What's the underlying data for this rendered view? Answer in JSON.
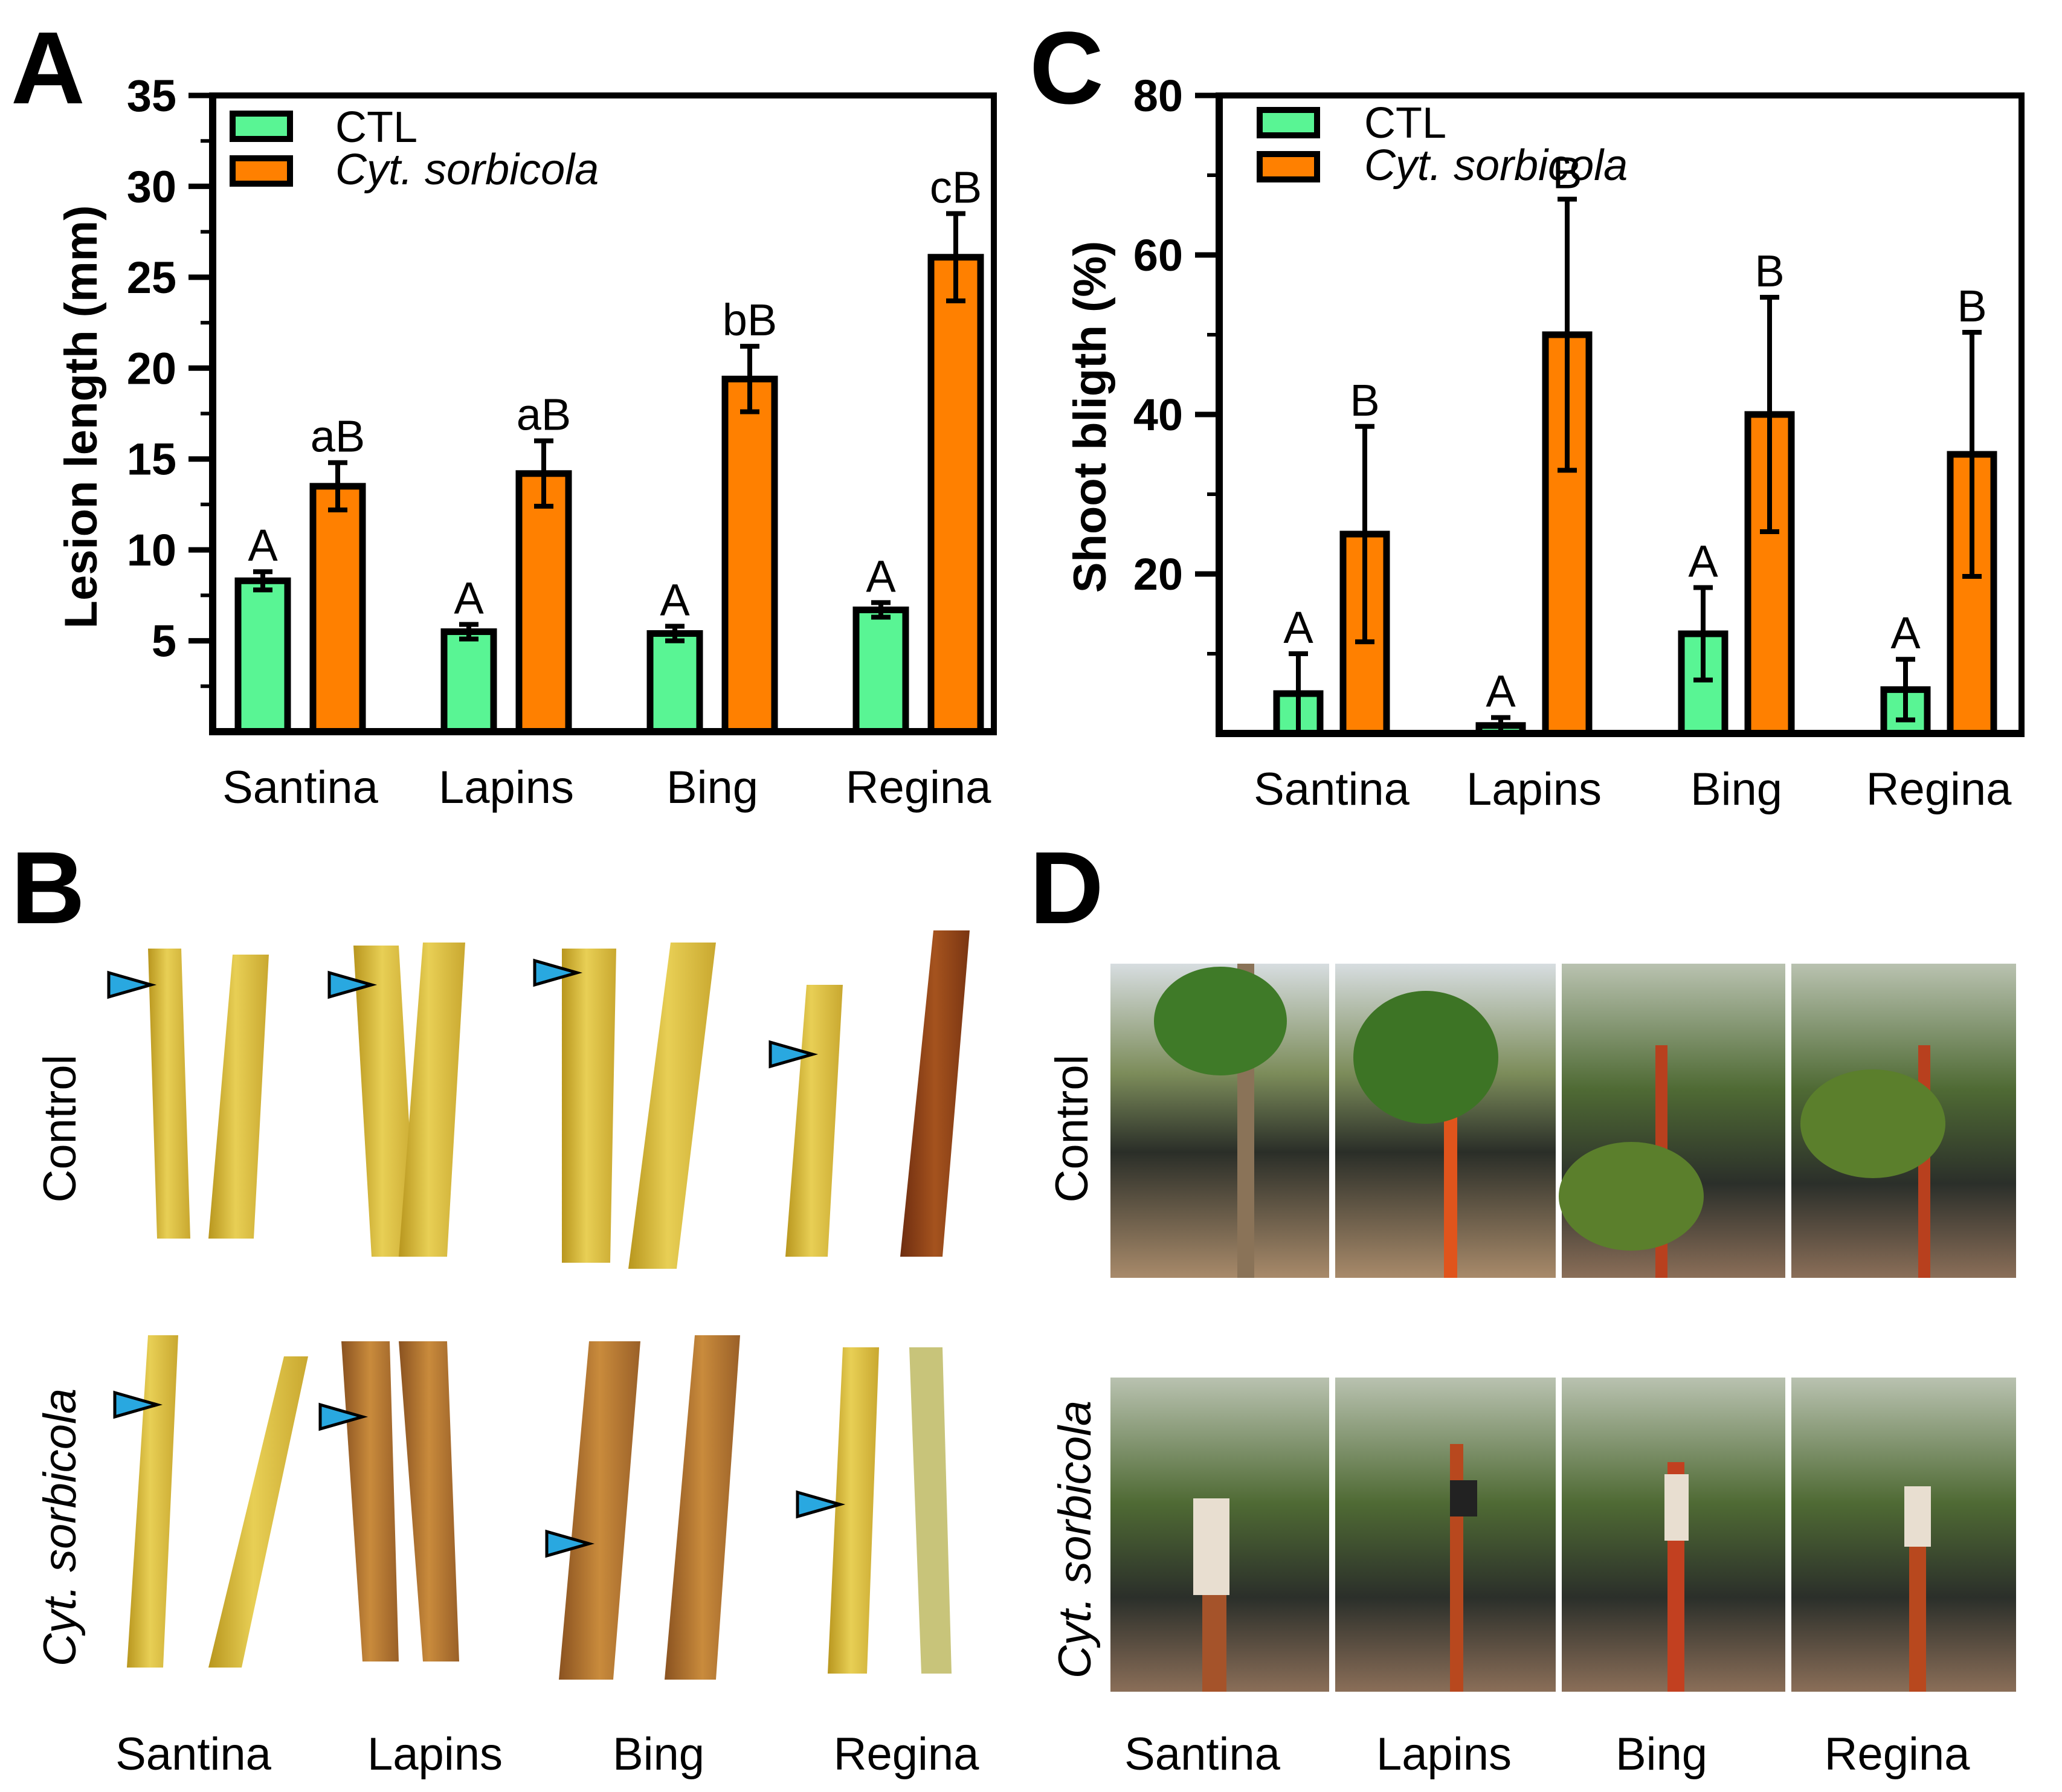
{
  "panel_labels": {
    "a": "A",
    "b": "B",
    "c": "C",
    "d": "D"
  },
  "colors": {
    "ctl": "#59f594",
    "treat": "#ff8000",
    "axis": "#000000",
    "arrow": "#29a8e0"
  },
  "legend": {
    "ctl": "CTL",
    "treat": "Cyt. sorbicola"
  },
  "chart_data": [
    {
      "id": "A",
      "type": "bar",
      "title": "",
      "xlabel": "",
      "ylabel": "Lesion length (mm)",
      "ylim": [
        0,
        35
      ],
      "yticks": [
        "5",
        "10",
        "15",
        "20",
        "25",
        "30",
        "35"
      ],
      "ytick_values": [
        5,
        10,
        15,
        20,
        25,
        30,
        35
      ],
      "categories": [
        "Santina",
        "Lapins",
        "Bing",
        "Regina"
      ],
      "series": [
        {
          "name": "CTL",
          "values": [
            8.3,
            5.5,
            5.4,
            6.7
          ],
          "errors": [
            0.5,
            0.4,
            0.4,
            0.4
          ],
          "labels": [
            "A",
            "A",
            "A",
            "A"
          ]
        },
        {
          "name": "Cyt. sorbicola",
          "values": [
            13.5,
            14.2,
            19.4,
            26.1
          ],
          "errors": [
            1.3,
            1.8,
            1.8,
            2.4
          ],
          "labels": [
            "aB",
            "aB",
            "bB",
            "cB"
          ]
        }
      ]
    },
    {
      "id": "C",
      "type": "bar",
      "title": "",
      "xlabel": "",
      "ylabel": "Shoot bligth (%)",
      "ylim": [
        0,
        80
      ],
      "yticks": [
        "20",
        "40",
        "60",
        "80"
      ],
      "ytick_values": [
        20,
        40,
        60,
        80
      ],
      "categories": [
        "Santina",
        "Lapins",
        "Bing",
        "Regina"
      ],
      "series": [
        {
          "name": "CTL",
          "values": [
            5,
            1,
            12.5,
            5.5
          ],
          "errors": [
            5,
            1,
            5.8,
            3.8
          ],
          "labels": [
            "A",
            "A",
            "A",
            "A"
          ]
        },
        {
          "name": "Cyt. sorbicola",
          "values": [
            25,
            50,
            40,
            35
          ],
          "errors": [
            13.5,
            17,
            14.7,
            15.3
          ],
          "labels": [
            "B",
            "B",
            "B",
            "B"
          ]
        }
      ]
    }
  ],
  "panel_b": {
    "row_labels": [
      "Control",
      "Cyt. sorbicola"
    ],
    "columns": [
      "Santina",
      "Lapins",
      "Bing",
      "Regina"
    ]
  },
  "panel_d": {
    "row_labels": [
      "Control",
      "Cyt. sorbicola"
    ],
    "columns": [
      "Santina",
      "Lapins",
      "Bing",
      "Regina"
    ]
  }
}
